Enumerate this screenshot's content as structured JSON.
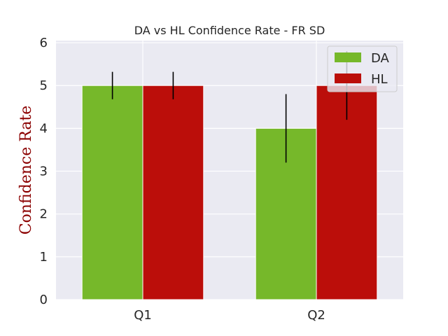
{
  "chart_data": {
    "type": "bar",
    "title": "DA vs HL Confidence Rate - FR SD",
    "xlabel": "",
    "ylabel": "Confidence Rate",
    "categories": [
      "Q1",
      "Q2"
    ],
    "ylim": [
      0,
      6.05
    ],
    "yticks": [
      0,
      1,
      2,
      3,
      4,
      5,
      6
    ],
    "ytick_labels": [
      "0",
      "1",
      "2",
      "3",
      "4",
      "5",
      "6"
    ],
    "grid": true,
    "legend_placement": "top-right",
    "series": [
      {
        "name": "DA",
        "values": [
          5,
          4
        ],
        "errors": [
          0.32,
          0.8
        ],
        "color": "#76b82a"
      },
      {
        "name": "HL",
        "values": [
          5,
          5
        ],
        "errors": [
          0.32,
          0.8
        ],
        "color": "#bb0e0a"
      }
    ],
    "colors": {
      "background": "#eaeaf2",
      "grid": "#ffffff",
      "errorbar": "#000000"
    }
  }
}
